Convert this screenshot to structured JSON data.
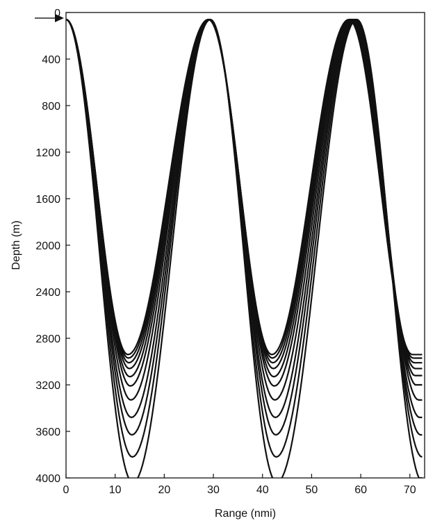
{
  "chart_data": {
    "type": "line",
    "title": "",
    "xlabel": "Range (nmi)",
    "ylabel": "Depth (m)",
    "xlim": [
      0,
      73
    ],
    "ylim": [
      4000,
      0
    ],
    "y_inverted": true,
    "grid": false,
    "legend": "none",
    "x_ticks": [
      0,
      10,
      20,
      30,
      40,
      50,
      60,
      70
    ],
    "y_ticks": [
      0,
      400,
      800,
      1200,
      1600,
      2000,
      2400,
      2800,
      3200,
      3600,
      4000
    ],
    "source_depth": 60,
    "source_marker": "arrow-icon",
    "line_color": "#111111",
    "series": [
      {
        "peaks": [
          0.0,
          29.0,
          57.6
        ],
        "troughs": [
          12.6,
          41.9
        ],
        "trough_depths": [
          2940,
          2940
        ],
        "end_depth": 2940
      },
      {
        "peaks": [
          0.0,
          29.0,
          57.7
        ],
        "troughs": [
          12.7,
          42.0
        ],
        "trough_depths": [
          2970,
          2970
        ],
        "end_depth": 2970
      },
      {
        "peaks": [
          0.0,
          29.0,
          57.8
        ],
        "troughs": [
          12.8,
          42.1
        ],
        "trough_depths": [
          3010,
          3010
        ],
        "end_depth": 3010
      },
      {
        "peaks": [
          0.0,
          29.0,
          57.9
        ],
        "troughs": [
          12.9,
          42.2
        ],
        "trough_depths": [
          3060,
          3060
        ],
        "end_depth": 3060
      },
      {
        "peaks": [
          0.0,
          29.0,
          58.0
        ],
        "troughs": [
          13.0,
          42.3
        ],
        "trough_depths": [
          3130,
          3130
        ],
        "end_depth": 3120
      },
      {
        "peaks": [
          0.0,
          29.1,
          58.2
        ],
        "troughs": [
          13.1,
          42.4
        ],
        "trough_depths": [
          3210,
          3210
        ],
        "end_depth": 3200
      },
      {
        "peaks": [
          0.0,
          29.1,
          58.4
        ],
        "troughs": [
          13.2,
          42.5
        ],
        "trough_depths": [
          3330,
          3330
        ],
        "end_depth": 3350
      },
      {
        "peaks": [
          0.0,
          29.2,
          58.6
        ],
        "troughs": [
          13.3,
          42.6
        ],
        "trough_depths": [
          3480,
          3480
        ],
        "end_depth": 3500
      },
      {
        "peaks": [
          0.0,
          29.3,
          58.8
        ],
        "troughs": [
          13.4,
          42.7
        ],
        "trough_depths": [
          3630,
          3630
        ],
        "end_depth": 3660
      },
      {
        "peaks": [
          0.0,
          29.3,
          59.0
        ],
        "troughs": [
          13.5,
          42.8
        ],
        "trough_depths": [
          3820,
          3820
        ],
        "end_depth": 3850
      },
      {
        "peaks": [
          0.0,
          29.4,
          59.2
        ],
        "troughs": [
          13.6,
          42.9
        ],
        "trough_depths": [
          4040,
          4040
        ],
        "end_depth": 4000
      }
    ]
  }
}
